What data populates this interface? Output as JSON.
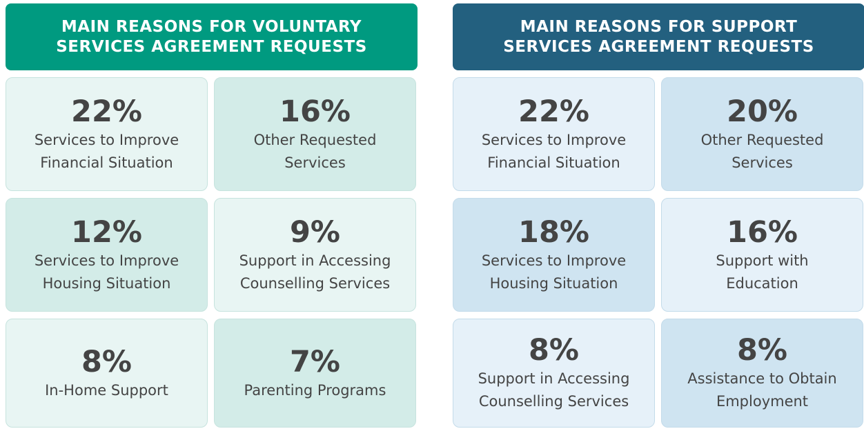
{
  "panels": [
    {
      "title": [
        "MAIN REASONS FOR VOLUNTARY",
        "SERVICES AGREEMENT REQUESTS"
      ],
      "items": [
        {
          "value": "22%",
          "label": [
            "Services to Improve",
            "Financial Situation"
          ]
        },
        {
          "value": "16%",
          "label": [
            "Other Requested",
            "Services"
          ]
        },
        {
          "value": "12%",
          "label": [
            "Services to Improve",
            "Housing Situation"
          ]
        },
        {
          "value": "9%",
          "label": [
            "Support in Accessing",
            "Counselling Services"
          ]
        },
        {
          "value": "8%",
          "label": [
            "In-Home Support"
          ]
        },
        {
          "value": "7%",
          "label": [
            "Parenting Programs"
          ]
        }
      ]
    },
    {
      "title": [
        "MAIN REASONS FOR SUPPORT",
        "SERVICES AGREEMENT REQUESTS"
      ],
      "items": [
        {
          "value": "22%",
          "label": [
            "Services to Improve",
            "Financial Situation"
          ]
        },
        {
          "value": "20%",
          "label": [
            "Other Requested",
            "Services"
          ]
        },
        {
          "value": "18%",
          "label": [
            "Services to Improve",
            "Housing Situation"
          ]
        },
        {
          "value": "16%",
          "label": [
            "Support with",
            "Education"
          ]
        },
        {
          "value": "8%",
          "label": [
            "Support in Accessing",
            "Counselling Services"
          ]
        },
        {
          "value": "8%",
          "label": [
            "Assistance to Obtain",
            "Employment"
          ]
        }
      ]
    }
  ]
}
